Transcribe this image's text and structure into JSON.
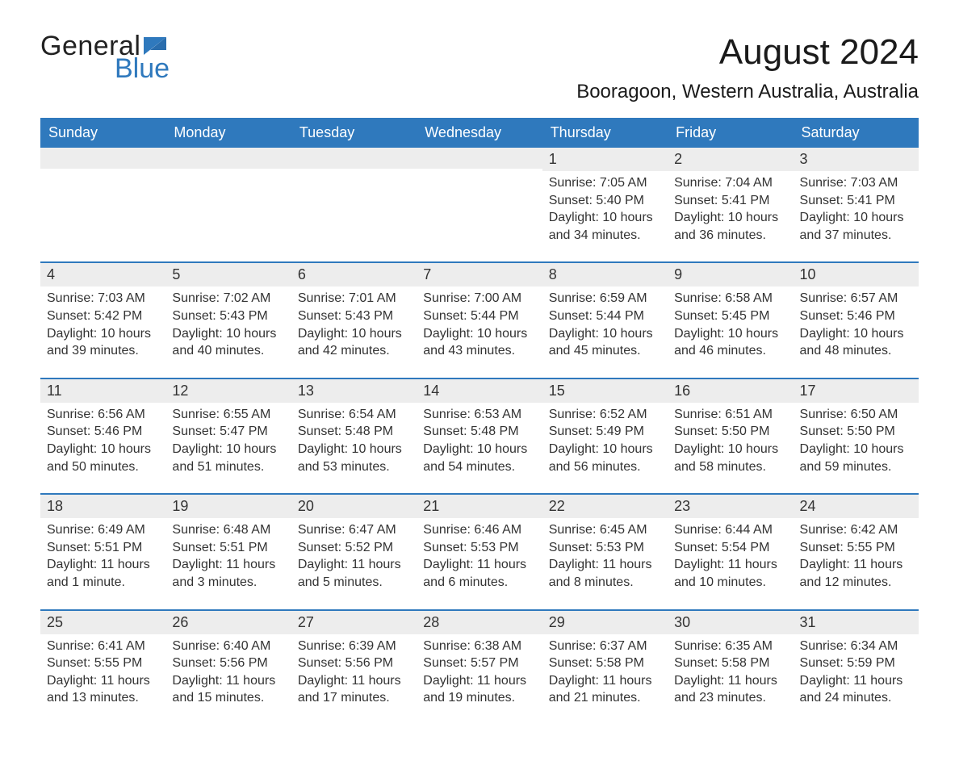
{
  "logo": {
    "word1": "General",
    "word2": "Blue",
    "flag_color": "#2f79bd",
    "text_color_dark": "#222222",
    "text_color_blue": "#2f79bd",
    "fontsize": 34
  },
  "title": {
    "month_year": "August 2024",
    "location": "Booragoon, Western Australia, Australia",
    "month_fontsize": 44,
    "location_fontsize": 24
  },
  "colors": {
    "header_blue": "#2f79bd",
    "row_separator": "#2f79bd",
    "day_header_bg": "#ededed",
    "background": "#ffffff",
    "text": "#333333"
  },
  "days_of_week": [
    "Sunday",
    "Monday",
    "Tuesday",
    "Wednesday",
    "Thursday",
    "Friday",
    "Saturday"
  ],
  "weeks": [
    [
      {
        "blank": true
      },
      {
        "blank": true
      },
      {
        "blank": true
      },
      {
        "blank": true
      },
      {
        "n": "1",
        "sunrise": "Sunrise: 7:05 AM",
        "sunset": "Sunset: 5:40 PM",
        "daylight": "Daylight: 10 hours and 34 minutes."
      },
      {
        "n": "2",
        "sunrise": "Sunrise: 7:04 AM",
        "sunset": "Sunset: 5:41 PM",
        "daylight": "Daylight: 10 hours and 36 minutes."
      },
      {
        "n": "3",
        "sunrise": "Sunrise: 7:03 AM",
        "sunset": "Sunset: 5:41 PM",
        "daylight": "Daylight: 10 hours and 37 minutes."
      }
    ],
    [
      {
        "n": "4",
        "sunrise": "Sunrise: 7:03 AM",
        "sunset": "Sunset: 5:42 PM",
        "daylight": "Daylight: 10 hours and 39 minutes."
      },
      {
        "n": "5",
        "sunrise": "Sunrise: 7:02 AM",
        "sunset": "Sunset: 5:43 PM",
        "daylight": "Daylight: 10 hours and 40 minutes."
      },
      {
        "n": "6",
        "sunrise": "Sunrise: 7:01 AM",
        "sunset": "Sunset: 5:43 PM",
        "daylight": "Daylight: 10 hours and 42 minutes."
      },
      {
        "n": "7",
        "sunrise": "Sunrise: 7:00 AM",
        "sunset": "Sunset: 5:44 PM",
        "daylight": "Daylight: 10 hours and 43 minutes."
      },
      {
        "n": "8",
        "sunrise": "Sunrise: 6:59 AM",
        "sunset": "Sunset: 5:44 PM",
        "daylight": "Daylight: 10 hours and 45 minutes."
      },
      {
        "n": "9",
        "sunrise": "Sunrise: 6:58 AM",
        "sunset": "Sunset: 5:45 PM",
        "daylight": "Daylight: 10 hours and 46 minutes."
      },
      {
        "n": "10",
        "sunrise": "Sunrise: 6:57 AM",
        "sunset": "Sunset: 5:46 PM",
        "daylight": "Daylight: 10 hours and 48 minutes."
      }
    ],
    [
      {
        "n": "11",
        "sunrise": "Sunrise: 6:56 AM",
        "sunset": "Sunset: 5:46 PM",
        "daylight": "Daylight: 10 hours and 50 minutes."
      },
      {
        "n": "12",
        "sunrise": "Sunrise: 6:55 AM",
        "sunset": "Sunset: 5:47 PM",
        "daylight": "Daylight: 10 hours and 51 minutes."
      },
      {
        "n": "13",
        "sunrise": "Sunrise: 6:54 AM",
        "sunset": "Sunset: 5:48 PM",
        "daylight": "Daylight: 10 hours and 53 minutes."
      },
      {
        "n": "14",
        "sunrise": "Sunrise: 6:53 AM",
        "sunset": "Sunset: 5:48 PM",
        "daylight": "Daylight: 10 hours and 54 minutes."
      },
      {
        "n": "15",
        "sunrise": "Sunrise: 6:52 AM",
        "sunset": "Sunset: 5:49 PM",
        "daylight": "Daylight: 10 hours and 56 minutes."
      },
      {
        "n": "16",
        "sunrise": "Sunrise: 6:51 AM",
        "sunset": "Sunset: 5:50 PM",
        "daylight": "Daylight: 10 hours and 58 minutes."
      },
      {
        "n": "17",
        "sunrise": "Sunrise: 6:50 AM",
        "sunset": "Sunset: 5:50 PM",
        "daylight": "Daylight: 10 hours and 59 minutes."
      }
    ],
    [
      {
        "n": "18",
        "sunrise": "Sunrise: 6:49 AM",
        "sunset": "Sunset: 5:51 PM",
        "daylight": "Daylight: 11 hours and 1 minute."
      },
      {
        "n": "19",
        "sunrise": "Sunrise: 6:48 AM",
        "sunset": "Sunset: 5:51 PM",
        "daylight": "Daylight: 11 hours and 3 minutes."
      },
      {
        "n": "20",
        "sunrise": "Sunrise: 6:47 AM",
        "sunset": "Sunset: 5:52 PM",
        "daylight": "Daylight: 11 hours and 5 minutes."
      },
      {
        "n": "21",
        "sunrise": "Sunrise: 6:46 AM",
        "sunset": "Sunset: 5:53 PM",
        "daylight": "Daylight: 11 hours and 6 minutes."
      },
      {
        "n": "22",
        "sunrise": "Sunrise: 6:45 AM",
        "sunset": "Sunset: 5:53 PM",
        "daylight": "Daylight: 11 hours and 8 minutes."
      },
      {
        "n": "23",
        "sunrise": "Sunrise: 6:44 AM",
        "sunset": "Sunset: 5:54 PM",
        "daylight": "Daylight: 11 hours and 10 minutes."
      },
      {
        "n": "24",
        "sunrise": "Sunrise: 6:42 AM",
        "sunset": "Sunset: 5:55 PM",
        "daylight": "Daylight: 11 hours and 12 minutes."
      }
    ],
    [
      {
        "n": "25",
        "sunrise": "Sunrise: 6:41 AM",
        "sunset": "Sunset: 5:55 PM",
        "daylight": "Daylight: 11 hours and 13 minutes."
      },
      {
        "n": "26",
        "sunrise": "Sunrise: 6:40 AM",
        "sunset": "Sunset: 5:56 PM",
        "daylight": "Daylight: 11 hours and 15 minutes."
      },
      {
        "n": "27",
        "sunrise": "Sunrise: 6:39 AM",
        "sunset": "Sunset: 5:56 PM",
        "daylight": "Daylight: 11 hours and 17 minutes."
      },
      {
        "n": "28",
        "sunrise": "Sunrise: 6:38 AM",
        "sunset": "Sunset: 5:57 PM",
        "daylight": "Daylight: 11 hours and 19 minutes."
      },
      {
        "n": "29",
        "sunrise": "Sunrise: 6:37 AM",
        "sunset": "Sunset: 5:58 PM",
        "daylight": "Daylight: 11 hours and 21 minutes."
      },
      {
        "n": "30",
        "sunrise": "Sunrise: 6:35 AM",
        "sunset": "Sunset: 5:58 PM",
        "daylight": "Daylight: 11 hours and 23 minutes."
      },
      {
        "n": "31",
        "sunrise": "Sunrise: 6:34 AM",
        "sunset": "Sunset: 5:59 PM",
        "daylight": "Daylight: 11 hours and 24 minutes."
      }
    ]
  ]
}
